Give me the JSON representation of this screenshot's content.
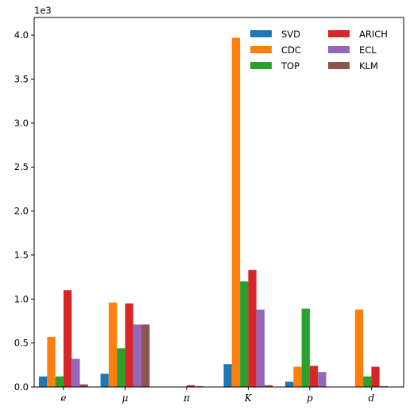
{
  "chart_data": {
    "type": "bar",
    "categories": [
      "e",
      "μ",
      "π",
      "K",
      "p",
      "d"
    ],
    "y_offset_label": "1e3",
    "ylim": [
      0,
      4.2
    ],
    "yticks": [
      "0.0",
      "0.5",
      "1.0",
      "1.5",
      "2.0",
      "2.5",
      "3.0",
      "3.5",
      "4.0"
    ],
    "ytick_values": [
      0,
      0.5,
      1.0,
      1.5,
      2.0,
      2.5,
      3.0,
      3.5,
      4.0
    ],
    "legend_placement": "top-right",
    "grid": false,
    "series": [
      {
        "name": "SVD",
        "color": "#1f77b4",
        "values": [
          0.12,
          0.15,
          0.0,
          0.26,
          0.06,
          0.0
        ]
      },
      {
        "name": "CDC",
        "color": "#ff7f0e",
        "values": [
          0.57,
          0.96,
          0.0,
          3.97,
          0.23,
          0.88
        ]
      },
      {
        "name": "TOP",
        "color": "#2ca02c",
        "values": [
          0.12,
          0.44,
          0.0,
          1.2,
          0.89,
          0.12
        ]
      },
      {
        "name": "ARICH",
        "color": "#d62728",
        "values": [
          1.1,
          0.95,
          0.02,
          1.33,
          0.24,
          0.23
        ]
      },
      {
        "name": "ECL",
        "color": "#9467bd",
        "values": [
          0.32,
          0.71,
          0.01,
          0.88,
          0.17,
          0.01
        ]
      },
      {
        "name": "KLM",
        "color": "#8c564b",
        "values": [
          0.03,
          0.71,
          0.0,
          0.02,
          0.0,
          0.0
        ]
      }
    ]
  }
}
